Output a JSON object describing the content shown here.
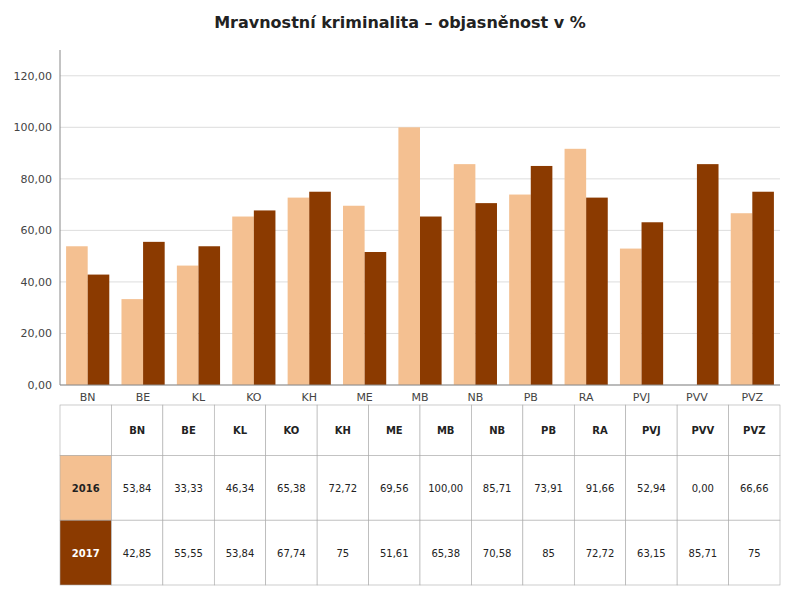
{
  "chart_data": {
    "type": "bar",
    "title": "Mravnostní kriminalita – objasněnost v %",
    "categories": [
      "BN",
      "BE",
      "KL",
      "KO",
      "KH",
      "ME",
      "MB",
      "NB",
      "PB",
      "RA",
      "PVJ",
      "PVV",
      "PVZ"
    ],
    "series": [
      {
        "name": "2016",
        "color": "#F4C091",
        "values": [
          53.84,
          33.33,
          46.34,
          65.38,
          72.72,
          69.56,
          100.0,
          85.71,
          73.91,
          91.66,
          52.94,
          0.0,
          66.66
        ],
        "value_labels": [
          "53,84",
          "33,33",
          "46,34",
          "65,38",
          "72,72",
          "69,56",
          "100,00",
          "85,71",
          "73,91",
          "91,66",
          "52,94",
          "0,00",
          "66,66"
        ]
      },
      {
        "name": "2017",
        "color": "#8B3A00",
        "values": [
          42.85,
          55.55,
          53.84,
          67.74,
          75.0,
          51.61,
          65.38,
          70.58,
          85.0,
          72.72,
          63.15,
          85.71,
          75.0
        ],
        "value_labels": [
          "42,85",
          "55,55",
          "53,84",
          "67,74",
          "75",
          "51,61",
          "65,38",
          "70,58",
          "85",
          "72,72",
          "63,15",
          "85,71",
          "75"
        ]
      }
    ],
    "ylim": [
      0,
      130
    ],
    "yticks": [
      {
        "value": 0,
        "label": "0,00"
      },
      {
        "value": 20,
        "label": "20,00"
      },
      {
        "value": 40,
        "label": "40,00"
      },
      {
        "value": 60,
        "label": "60,00"
      },
      {
        "value": 80,
        "label": "80,00"
      },
      {
        "value": 100,
        "label": "100,00"
      },
      {
        "value": 120,
        "label": "120,00"
      }
    ],
    "grid": true
  }
}
